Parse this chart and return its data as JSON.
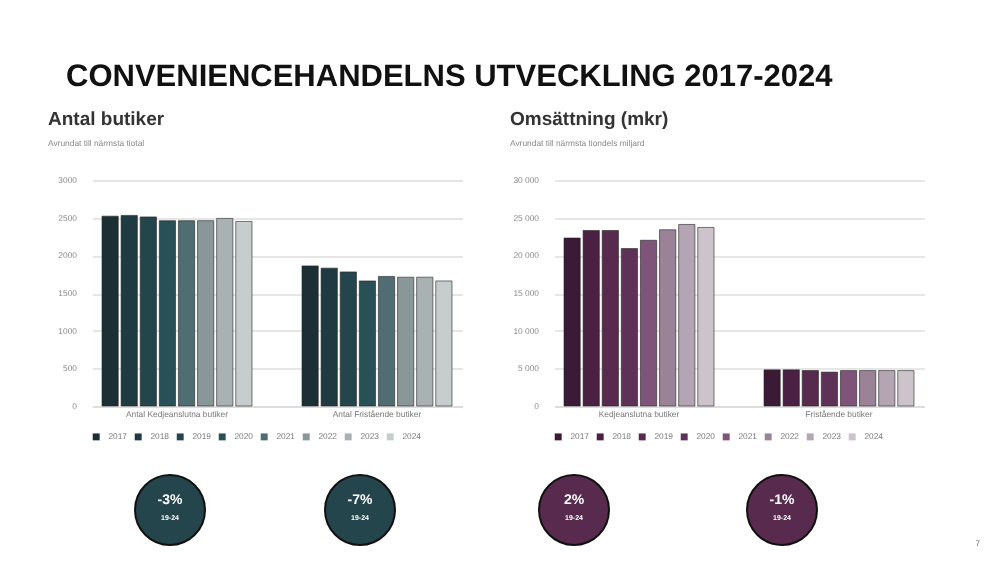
{
  "chart_data": [
    {
      "type": "bar",
      "title": "Antal butiker",
      "subtitle": "Avrundat till närmsta tiotal",
      "categories": [
        "Antal Kedjeanslutna butiker",
        "Antal Fristående butiker"
      ],
      "series": [
        {
          "name": "2017",
          "color": "#1b2f34",
          "values": [
            2520,
            1860
          ]
        },
        {
          "name": "2018",
          "color": "#1f3a41",
          "values": [
            2530,
            1830
          ]
        },
        {
          "name": "2019",
          "color": "#24454c",
          "values": [
            2510,
            1780
          ]
        },
        {
          "name": "2020",
          "color": "#294f57",
          "values": [
            2460,
            1660
          ]
        },
        {
          "name": "2021",
          "color": "#4f6d72",
          "values": [
            2460,
            1720
          ]
        },
        {
          "name": "2022",
          "color": "#8a9799",
          "values": [
            2460,
            1710
          ]
        },
        {
          "name": "2023",
          "color": "#a9b1b3",
          "values": [
            2490,
            1710
          ]
        },
        {
          "name": "2024",
          "color": "#c7cccd",
          "values": [
            2450,
            1660
          ]
        }
      ],
      "ylim": [
        0,
        3000
      ],
      "yticks": [
        0,
        500,
        1000,
        1500,
        2000,
        2500,
        3000
      ],
      "grid": "y",
      "legend": "bottom",
      "annotations": [
        "CONVENIENCEHANDELNS UTVECKLING 2017-2024",
        "-3% 19-24",
        "-7% 19-24"
      ]
    },
    {
      "type": "bar",
      "title": "Omsättning (mkr)",
      "subtitle": "Avrundat till närmsta tiondels miljard",
      "categories": [
        "Kedjeanslutna butiker",
        "Fristående butiker"
      ],
      "series": [
        {
          "name": "2017",
          "color": "#3b1a35",
          "values": [
            22300,
            4800
          ]
        },
        {
          "name": "2018",
          "color": "#4a2142",
          "values": [
            23300,
            4800
          ]
        },
        {
          "name": "2019",
          "color": "#572a4e",
          "values": [
            23300,
            4700
          ]
        },
        {
          "name": "2020",
          "color": "#5e3157",
          "values": [
            20900,
            4500
          ]
        },
        {
          "name": "2021",
          "color": "#7e5578",
          "values": [
            22000,
            4700
          ]
        },
        {
          "name": "2022",
          "color": "#9b8397",
          "values": [
            23400,
            4700
          ]
        },
        {
          "name": "2023",
          "color": "#b3a5b1",
          "values": [
            24100,
            4700
          ]
        },
        {
          "name": "2024",
          "color": "#cdc3cb",
          "values": [
            23700,
            4700
          ]
        }
      ],
      "ylim": [
        0,
        30000
      ],
      "yticks": [
        0,
        {
          "value": 5000,
          "label": "5 000"
        },
        {
          "value": 10000,
          "label": "10 000"
        },
        {
          "value": 15000,
          "label": "15 000"
        },
        {
          "value": 20000,
          "label": "20 000"
        },
        {
          "value": 25000,
          "label": "25 000"
        },
        {
          "value": 30000,
          "label": "30 000"
        }
      ],
      "grid": "y",
      "legend": "bottom",
      "annotations": [
        "2% 19-24",
        "-1% 19-24",
        "7"
      ]
    }
  ]
}
